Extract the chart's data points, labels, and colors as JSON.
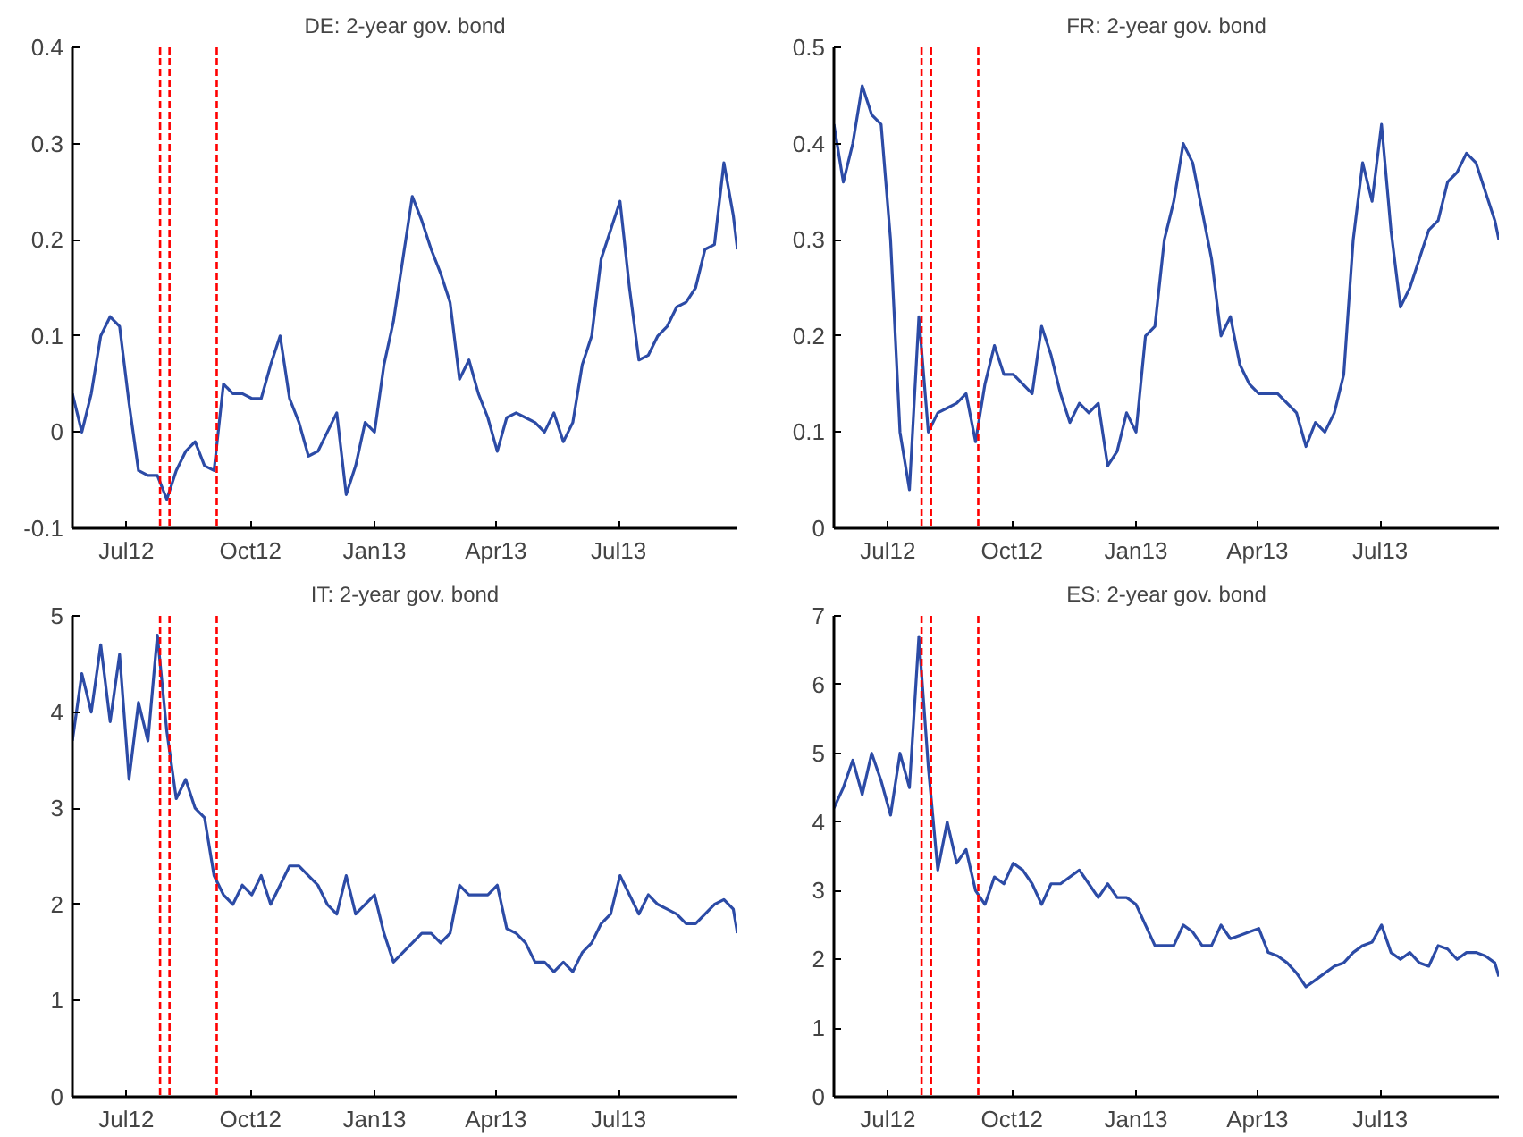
{
  "chart_data": [
    {
      "type": "line",
      "title": "DE: 2-year gov. bond",
      "x": [
        "2012-05-22",
        "2012-05-29",
        "2012-06-05",
        "2012-06-12",
        "2012-06-19",
        "2012-06-26",
        "2012-07-03",
        "2012-07-10",
        "2012-07-17",
        "2012-07-24",
        "2012-07-31",
        "2012-08-07",
        "2012-08-14",
        "2012-08-21",
        "2012-08-28",
        "2012-09-04",
        "2012-09-11",
        "2012-09-18",
        "2012-09-25",
        "2012-10-02",
        "2012-10-09",
        "2012-10-16",
        "2012-10-23",
        "2012-10-30",
        "2012-11-06",
        "2012-11-13",
        "2012-11-20",
        "2012-11-27",
        "2012-12-04",
        "2012-12-11",
        "2012-12-18",
        "2012-12-25",
        "2013-01-01",
        "2013-01-08",
        "2013-01-15",
        "2013-01-22",
        "2013-01-29",
        "2013-02-05",
        "2013-02-12",
        "2013-02-19",
        "2013-02-26",
        "2013-03-05",
        "2013-03-12",
        "2013-03-19",
        "2013-03-26",
        "2013-04-02",
        "2013-04-09",
        "2013-04-16",
        "2013-04-23",
        "2013-04-30",
        "2013-05-07",
        "2013-05-14",
        "2013-05-21",
        "2013-05-28",
        "2013-06-04",
        "2013-06-11",
        "2013-06-18",
        "2013-06-25",
        "2013-07-02",
        "2013-07-09",
        "2013-07-16",
        "2013-07-23",
        "2013-07-30",
        "2013-08-06",
        "2013-08-13",
        "2013-08-20",
        "2013-08-27",
        "2013-09-03",
        "2013-09-10",
        "2013-09-17",
        "2013-09-24",
        "2013-09-27"
      ],
      "series": [
        {
          "color": "#2c4ba6",
          "values": [
            0.04,
            0.0,
            0.04,
            0.1,
            0.12,
            0.11,
            0.03,
            -0.04,
            -0.045,
            -0.045,
            -0.07,
            -0.04,
            -0.02,
            -0.01,
            -0.035,
            -0.04,
            0.05,
            0.04,
            0.04,
            0.035,
            0.035,
            0.07,
            0.1,
            0.035,
            0.01,
            -0.025,
            -0.02,
            0.0,
            0.02,
            -0.065,
            -0.035,
            0.01,
            0.0,
            0.07,
            0.115,
            0.18,
            0.245,
            0.22,
            0.19,
            0.165,
            0.135,
            0.055,
            0.075,
            0.04,
            0.015,
            -0.02,
            0.015,
            0.02,
            0.015,
            0.01,
            0.0,
            0.02,
            -0.01,
            0.01,
            0.07,
            0.1,
            0.18,
            0.21,
            0.24,
            0.15,
            0.075,
            0.08,
            0.1,
            0.11,
            0.13,
            0.135,
            0.15,
            0.19,
            0.195,
            0.28,
            0.225,
            0.19
          ]
        }
      ],
      "xlim": [
        "2012-05-22",
        "2013-09-27"
      ],
      "xticks": [
        {
          "value": "2012-07-01",
          "label": "Jul12"
        },
        {
          "value": "2012-10-01",
          "label": "Oct12"
        },
        {
          "value": "2013-01-01",
          "label": "Jan13"
        },
        {
          "value": "2013-04-01",
          "label": "Apr13"
        },
        {
          "value": "2013-07-01",
          "label": "Jul13"
        }
      ],
      "ylim": [
        -0.1,
        0.4
      ],
      "yticks": [
        -0.1,
        0,
        0.1,
        0.2,
        0.3,
        0.4
      ],
      "grid": false,
      "line_style": "solid",
      "ref_lines": [
        {
          "axis": "x",
          "value": "2012-07-26",
          "color": "#ff0000",
          "line_style": "dashed"
        },
        {
          "axis": "x",
          "value": "2012-08-02",
          "color": "#ff0000",
          "line_style": "dashed"
        },
        {
          "axis": "x",
          "value": "2012-09-06",
          "color": "#ff0000",
          "line_style": "dashed"
        }
      ]
    },
    {
      "type": "line",
      "title": "FR: 2-year gov. bond",
      "x": [
        "2012-05-22",
        "2012-05-29",
        "2012-06-05",
        "2012-06-12",
        "2012-06-19",
        "2012-06-26",
        "2012-07-03",
        "2012-07-10",
        "2012-07-17",
        "2012-07-24",
        "2012-07-31",
        "2012-08-07",
        "2012-08-14",
        "2012-08-21",
        "2012-08-28",
        "2012-09-04",
        "2012-09-11",
        "2012-09-18",
        "2012-09-25",
        "2012-10-02",
        "2012-10-09",
        "2012-10-16",
        "2012-10-23",
        "2012-10-30",
        "2012-11-06",
        "2012-11-13",
        "2012-11-20",
        "2012-11-27",
        "2012-12-04",
        "2012-12-11",
        "2012-12-18",
        "2012-12-25",
        "2013-01-01",
        "2013-01-08",
        "2013-01-15",
        "2013-01-22",
        "2013-01-29",
        "2013-02-05",
        "2013-02-12",
        "2013-02-19",
        "2013-02-26",
        "2013-03-05",
        "2013-03-12",
        "2013-03-19",
        "2013-03-26",
        "2013-04-02",
        "2013-04-09",
        "2013-04-16",
        "2013-04-23",
        "2013-04-30",
        "2013-05-07",
        "2013-05-14",
        "2013-05-21",
        "2013-05-28",
        "2013-06-04",
        "2013-06-11",
        "2013-06-18",
        "2013-06-25",
        "2013-07-02",
        "2013-07-09",
        "2013-07-16",
        "2013-07-23",
        "2013-07-30",
        "2013-08-06",
        "2013-08-13",
        "2013-08-20",
        "2013-08-27",
        "2013-09-03",
        "2013-09-10",
        "2013-09-17",
        "2013-09-24",
        "2013-09-27"
      ],
      "series": [
        {
          "color": "#2c4ba6",
          "values": [
            0.42,
            0.36,
            0.4,
            0.46,
            0.43,
            0.42,
            0.3,
            0.1,
            0.04,
            0.22,
            0.1,
            0.12,
            0.125,
            0.13,
            0.14,
            0.09,
            0.15,
            0.19,
            0.16,
            0.16,
            0.15,
            0.14,
            0.21,
            0.18,
            0.14,
            0.11,
            0.13,
            0.12,
            0.13,
            0.065,
            0.08,
            0.12,
            0.1,
            0.2,
            0.21,
            0.3,
            0.34,
            0.4,
            0.38,
            0.33,
            0.28,
            0.2,
            0.22,
            0.17,
            0.15,
            0.14,
            0.14,
            0.14,
            0.13,
            0.12,
            0.085,
            0.11,
            0.1,
            0.12,
            0.16,
            0.3,
            0.38,
            0.34,
            0.42,
            0.31,
            0.23,
            0.25,
            0.28,
            0.31,
            0.32,
            0.36,
            0.37,
            0.39,
            0.38,
            0.35,
            0.32,
            0.3
          ]
        }
      ],
      "xlim": [
        "2012-05-22",
        "2013-09-27"
      ],
      "xticks": [
        {
          "value": "2012-07-01",
          "label": "Jul12"
        },
        {
          "value": "2012-10-01",
          "label": "Oct12"
        },
        {
          "value": "2013-01-01",
          "label": "Jan13"
        },
        {
          "value": "2013-04-01",
          "label": "Apr13"
        },
        {
          "value": "2013-07-01",
          "label": "Jul13"
        }
      ],
      "ylim": [
        0,
        0.5
      ],
      "yticks": [
        0,
        0.1,
        0.2,
        0.3,
        0.4,
        0.5
      ],
      "grid": false,
      "line_style": "solid",
      "ref_lines": [
        {
          "axis": "x",
          "value": "2012-07-26",
          "color": "#ff0000",
          "line_style": "dashed"
        },
        {
          "axis": "x",
          "value": "2012-08-02",
          "color": "#ff0000",
          "line_style": "dashed"
        },
        {
          "axis": "x",
          "value": "2012-09-06",
          "color": "#ff0000",
          "line_style": "dashed"
        }
      ]
    },
    {
      "type": "line",
      "title": "IT: 2-year gov. bond",
      "x": [
        "2012-05-22",
        "2012-05-29",
        "2012-06-05",
        "2012-06-12",
        "2012-06-19",
        "2012-06-26",
        "2012-07-03",
        "2012-07-10",
        "2012-07-17",
        "2012-07-24",
        "2012-07-31",
        "2012-08-07",
        "2012-08-14",
        "2012-08-21",
        "2012-08-28",
        "2012-09-04",
        "2012-09-11",
        "2012-09-18",
        "2012-09-25",
        "2012-10-02",
        "2012-10-09",
        "2012-10-16",
        "2012-10-23",
        "2012-10-30",
        "2012-11-06",
        "2012-11-13",
        "2012-11-20",
        "2012-11-27",
        "2012-12-04",
        "2012-12-11",
        "2012-12-18",
        "2012-12-25",
        "2013-01-01",
        "2013-01-08",
        "2013-01-15",
        "2013-01-22",
        "2013-01-29",
        "2013-02-05",
        "2013-02-12",
        "2013-02-19",
        "2013-02-26",
        "2013-03-05",
        "2013-03-12",
        "2013-03-19",
        "2013-03-26",
        "2013-04-02",
        "2013-04-09",
        "2013-04-16",
        "2013-04-23",
        "2013-04-30",
        "2013-05-07",
        "2013-05-14",
        "2013-05-21",
        "2013-05-28",
        "2013-06-04",
        "2013-06-11",
        "2013-06-18",
        "2013-06-25",
        "2013-07-02",
        "2013-07-09",
        "2013-07-16",
        "2013-07-23",
        "2013-07-30",
        "2013-08-06",
        "2013-08-13",
        "2013-08-20",
        "2013-08-27",
        "2013-09-03",
        "2013-09-10",
        "2013-09-17",
        "2013-09-24",
        "2013-09-27"
      ],
      "series": [
        {
          "color": "#2c4ba6",
          "values": [
            3.7,
            4.4,
            4.0,
            4.7,
            3.9,
            4.6,
            3.3,
            4.1,
            3.7,
            4.8,
            3.8,
            3.1,
            3.3,
            3.0,
            2.9,
            2.3,
            2.1,
            2.0,
            2.2,
            2.1,
            2.3,
            2.0,
            2.2,
            2.4,
            2.4,
            2.3,
            2.2,
            2.0,
            1.9,
            2.3,
            1.9,
            2.0,
            2.1,
            1.7,
            1.4,
            1.5,
            1.6,
            1.7,
            1.7,
            1.6,
            1.7,
            2.2,
            2.1,
            2.1,
            2.1,
            2.2,
            1.75,
            1.7,
            1.6,
            1.4,
            1.4,
            1.3,
            1.4,
            1.3,
            1.5,
            1.6,
            1.8,
            1.9,
            2.3,
            2.1,
            1.9,
            2.1,
            2.0,
            1.95,
            1.9,
            1.8,
            1.8,
            1.9,
            2.0,
            2.05,
            1.95,
            1.7
          ]
        }
      ],
      "xlim": [
        "2012-05-22",
        "2013-09-27"
      ],
      "xticks": [
        {
          "value": "2012-07-01",
          "label": "Jul12"
        },
        {
          "value": "2012-10-01",
          "label": "Oct12"
        },
        {
          "value": "2013-01-01",
          "label": "Jan13"
        },
        {
          "value": "2013-04-01",
          "label": "Apr13"
        },
        {
          "value": "2013-07-01",
          "label": "Jul13"
        }
      ],
      "ylim": [
        0,
        5
      ],
      "yticks": [
        0,
        1,
        2,
        3,
        4,
        5
      ],
      "grid": false,
      "line_style": "solid",
      "ref_lines": [
        {
          "axis": "x",
          "value": "2012-07-26",
          "color": "#ff0000",
          "line_style": "dashed"
        },
        {
          "axis": "x",
          "value": "2012-08-02",
          "color": "#ff0000",
          "line_style": "dashed"
        },
        {
          "axis": "x",
          "value": "2012-09-06",
          "color": "#ff0000",
          "line_style": "dashed"
        }
      ]
    },
    {
      "type": "line",
      "title": "ES: 2-year gov. bond",
      "x": [
        "2012-05-22",
        "2012-05-29",
        "2012-06-05",
        "2012-06-12",
        "2012-06-19",
        "2012-06-26",
        "2012-07-03",
        "2012-07-10",
        "2012-07-17",
        "2012-07-24",
        "2012-07-31",
        "2012-08-07",
        "2012-08-14",
        "2012-08-21",
        "2012-08-28",
        "2012-09-04",
        "2012-09-11",
        "2012-09-18",
        "2012-09-25",
        "2012-10-02",
        "2012-10-09",
        "2012-10-16",
        "2012-10-23",
        "2012-10-30",
        "2012-11-06",
        "2012-11-13",
        "2012-11-20",
        "2012-11-27",
        "2012-12-04",
        "2012-12-11",
        "2012-12-18",
        "2012-12-25",
        "2013-01-01",
        "2013-01-08",
        "2013-01-15",
        "2013-01-22",
        "2013-01-29",
        "2013-02-05",
        "2013-02-12",
        "2013-02-19",
        "2013-02-26",
        "2013-03-05",
        "2013-03-12",
        "2013-03-19",
        "2013-03-26",
        "2013-04-02",
        "2013-04-09",
        "2013-04-16",
        "2013-04-23",
        "2013-04-30",
        "2013-05-07",
        "2013-05-14",
        "2013-05-21",
        "2013-05-28",
        "2013-06-04",
        "2013-06-11",
        "2013-06-18",
        "2013-06-25",
        "2013-07-02",
        "2013-07-09",
        "2013-07-16",
        "2013-07-23",
        "2013-07-30",
        "2013-08-06",
        "2013-08-13",
        "2013-08-20",
        "2013-08-27",
        "2013-09-03",
        "2013-09-10",
        "2013-09-17",
        "2013-09-24",
        "2013-09-27"
      ],
      "series": [
        {
          "color": "#2c4ba6",
          "values": [
            4.2,
            4.5,
            4.9,
            4.4,
            5.0,
            4.6,
            4.1,
            5.0,
            4.5,
            6.7,
            4.8,
            3.3,
            4.0,
            3.4,
            3.6,
            3.0,
            2.8,
            3.2,
            3.1,
            3.4,
            3.3,
            3.1,
            2.8,
            3.1,
            3.1,
            3.2,
            3.3,
            3.1,
            2.9,
            3.1,
            2.9,
            2.9,
            2.8,
            2.5,
            2.2,
            2.2,
            2.2,
            2.5,
            2.4,
            2.2,
            2.2,
            2.5,
            2.3,
            2.35,
            2.4,
            2.45,
            2.1,
            2.05,
            1.95,
            1.8,
            1.6,
            1.7,
            1.8,
            1.9,
            1.95,
            2.1,
            2.2,
            2.25,
            2.5,
            2.1,
            2.0,
            2.1,
            1.95,
            1.9,
            2.2,
            2.15,
            2.0,
            2.1,
            2.1,
            2.05,
            1.95,
            1.75
          ]
        }
      ],
      "xlim": [
        "2012-05-22",
        "2013-09-27"
      ],
      "xticks": [
        {
          "value": "2012-07-01",
          "label": "Jul12"
        },
        {
          "value": "2012-10-01",
          "label": "Oct12"
        },
        {
          "value": "2013-01-01",
          "label": "Jan13"
        },
        {
          "value": "2013-04-01",
          "label": "Apr13"
        },
        {
          "value": "2013-07-01",
          "label": "Jul13"
        }
      ],
      "ylim": [
        0,
        7
      ],
      "yticks": [
        0,
        1,
        2,
        3,
        4,
        5,
        6,
        7
      ],
      "grid": false,
      "line_style": "solid",
      "ref_lines": [
        {
          "axis": "x",
          "value": "2012-07-26",
          "color": "#ff0000",
          "line_style": "dashed"
        },
        {
          "axis": "x",
          "value": "2012-08-02",
          "color": "#ff0000",
          "line_style": "dashed"
        },
        {
          "axis": "x",
          "value": "2012-09-06",
          "color": "#ff0000",
          "line_style": "dashed"
        }
      ]
    }
  ]
}
